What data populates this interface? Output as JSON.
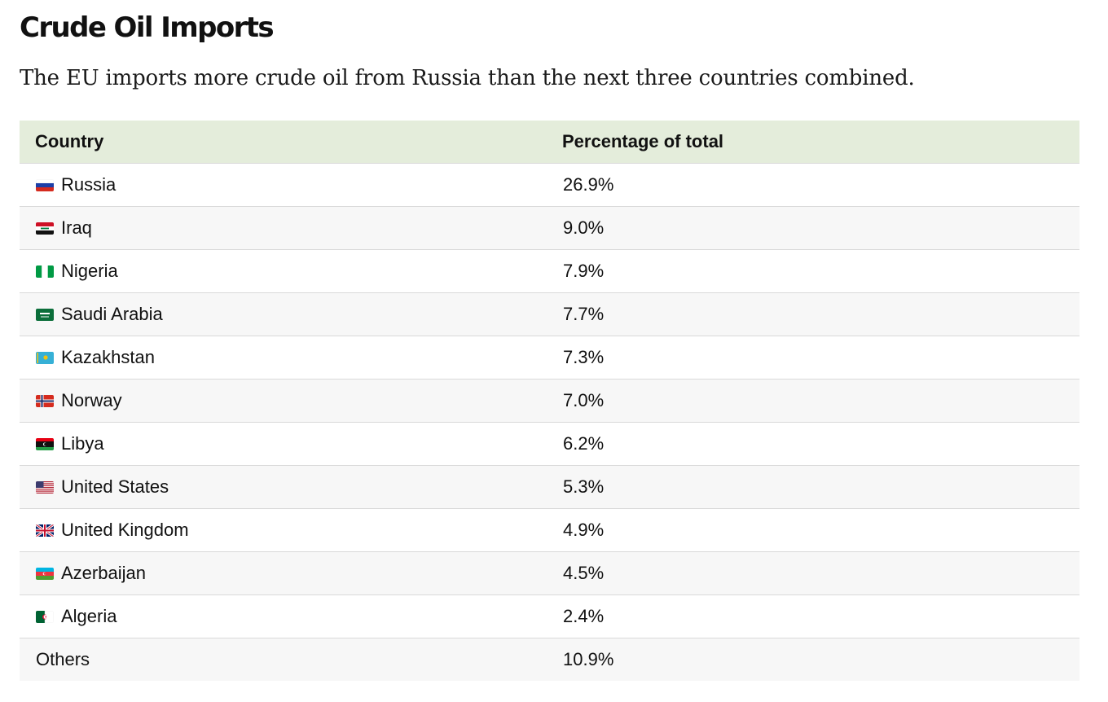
{
  "title": "Crude Oil Imports",
  "subtitle": "The EU imports more crude oil from Russia than the next three countries combined.",
  "table": {
    "header": {
      "country": "Country",
      "percentage": "Percentage of total"
    }
  },
  "chart_data": {
    "type": "table",
    "columns": [
      "Country",
      "Percentage of total"
    ],
    "rows": [
      {
        "country": "Russia",
        "value": "26.9%",
        "flag": "russia-flag-icon"
      },
      {
        "country": "Iraq",
        "value": "9.0%",
        "flag": "iraq-flag-icon"
      },
      {
        "country": "Nigeria",
        "value": "7.9%",
        "flag": "nigeria-flag-icon"
      },
      {
        "country": "Saudi Arabia",
        "value": "7.7%",
        "flag": "saudi-arabia-flag-icon"
      },
      {
        "country": "Kazakhstan",
        "value": "7.3%",
        "flag": "kazakhstan-flag-icon"
      },
      {
        "country": "Norway",
        "value": "7.0%",
        "flag": "norway-flag-icon"
      },
      {
        "country": "Libya",
        "value": "6.2%",
        "flag": "libya-flag-icon"
      },
      {
        "country": "United States",
        "value": "5.3%",
        "flag": "united-states-flag-icon"
      },
      {
        "country": "United Kingdom",
        "value": "4.9%",
        "flag": "united-kingdom-flag-icon"
      },
      {
        "country": "Azerbaijan",
        "value": "4.5%",
        "flag": "azerbaijan-flag-icon"
      },
      {
        "country": "Algeria",
        "value": "2.4%",
        "flag": "algeria-flag-icon"
      },
      {
        "country": "Others",
        "value": "10.9%",
        "flag": ""
      }
    ]
  },
  "colors": {
    "header_background": "#e4eddb",
    "row_alt_background": "#f7f7f7",
    "divider": "#d9d9d9"
  }
}
